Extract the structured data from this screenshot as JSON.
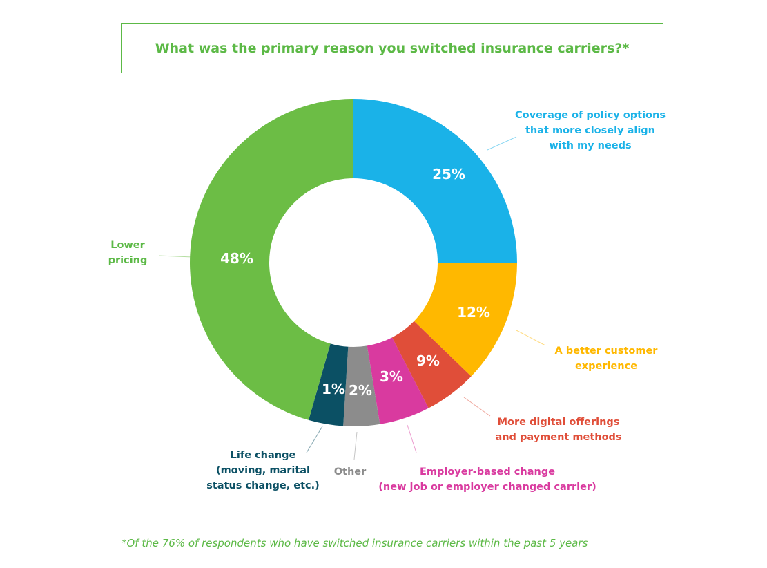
{
  "chart_data": {
    "type": "pie",
    "title": "What was the primary reason you switched insurance carriers?*",
    "footnote": "*Of the 76% of respondents who have switched insurance carriers within the past 5 years",
    "categories": [
      "Coverage of policy options that more closely align with my needs",
      "A better customer experience",
      "More digital offerings and payment methods",
      "Employer-based change (new job or employer changed carrier)",
      "Other",
      "Life change (moving, marital status change, etc.)",
      "Lower pricing"
    ],
    "values": [
      25,
      12,
      9,
      3,
      2,
      1,
      48
    ],
    "value_labels": [
      "25%",
      "12%",
      "9%",
      "3%",
      "2%",
      "1%",
      "48%"
    ],
    "colors": [
      "#1ab2e8",
      "#ffb800",
      "#e04e39",
      "#d93a9f",
      "#8c8c8c",
      "#0b5064",
      "#6cbd45"
    ],
    "callouts": [
      [
        "Coverage of policy options",
        "that more closely align",
        "with my needs"
      ],
      [
        "A better customer",
        "experience"
      ],
      [
        "More digital offerings",
        "and payment methods"
      ],
      [
        "Employer-based change",
        "(new job or employer changed carrier)"
      ],
      [
        "Other"
      ],
      [
        "Life change",
        "(moving, marital",
        "status change, etc.)"
      ],
      [
        "Lower",
        "pricing"
      ]
    ],
    "legend": "callouts"
  }
}
